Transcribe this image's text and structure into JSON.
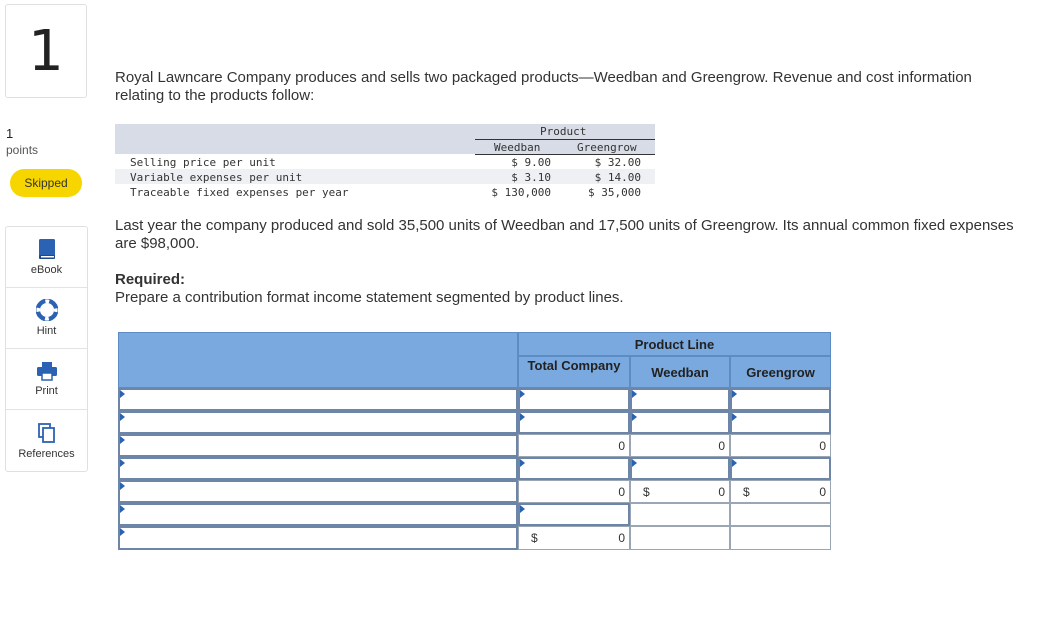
{
  "sidebar": {
    "question_number": "1",
    "points_value": "1",
    "points_label": "points",
    "status_label": "Skipped",
    "tools": [
      {
        "label": "eBook"
      },
      {
        "label": "Hint"
      },
      {
        "label": "Print"
      },
      {
        "label": "References"
      }
    ]
  },
  "question": {
    "intro": "Royal Lawncare Company produces and sells two packaged products—Weedban and Greengrow. Revenue and cost information relating to the products follow:",
    "product_header": "Product",
    "col_weedban": "Weedban",
    "col_greengrow": "Greengrow",
    "rows": [
      {
        "label": "Selling price per unit",
        "weedban": "$ 9.00",
        "greengrow": "$ 32.00"
      },
      {
        "label": "Variable expenses per unit",
        "weedban": "$ 3.10",
        "greengrow": "$ 14.00"
      },
      {
        "label": "Traceable fixed expenses per year",
        "weedban": "$ 130,000",
        "greengrow": "$ 35,000"
      }
    ],
    "paragraph2": "Last year the company produced and sold 35,500 units of Weedban and 17,500 units of Greengrow. Its annual common fixed expenses are $98,000.",
    "required_label": "Required:",
    "instruction": "Prepare a contribution format income statement segmented by product lines."
  },
  "grid": {
    "product_line": "Product Line",
    "total_company": "Total Company",
    "weedban": "Weedban",
    "greengrow": "Greengrow",
    "row3": {
      "total": "0",
      "weedban": "0",
      "greengrow": "0"
    },
    "row5": {
      "total": "0",
      "weedban_dollar": "$",
      "weedban": "0",
      "greengrow_dollar": "$",
      "greengrow": "0"
    },
    "row7": {
      "dollar": "$",
      "total": "0"
    }
  }
}
